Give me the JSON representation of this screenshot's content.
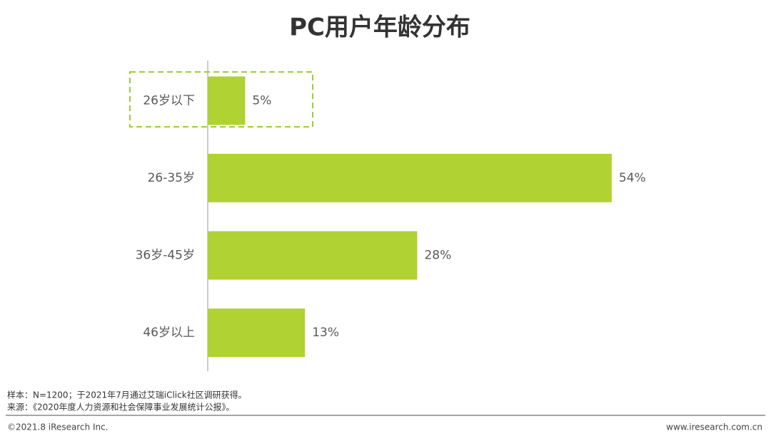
{
  "chart_data": {
    "type": "hbar",
    "title": "PC用户年龄分布",
    "categories": [
      "26岁以下",
      "26-35岁",
      "36岁-45岁",
      "46岁以上"
    ],
    "values": [
      5,
      54,
      28,
      13
    ],
    "value_labels": [
      "5%",
      "54%",
      "28%",
      "13%"
    ],
    "color": "#b0d232"
  },
  "notes": [
    "样本：N=1200；于2021年7月通过艾瑞iClick社区调研获得。",
    "来源：《2020年度人力资源和社会保障事业发展统计公报》。"
  ],
  "footer": {
    "copyright": "©2021.8 iResearch Inc.",
    "website": "www.iresearch.com.cn"
  }
}
